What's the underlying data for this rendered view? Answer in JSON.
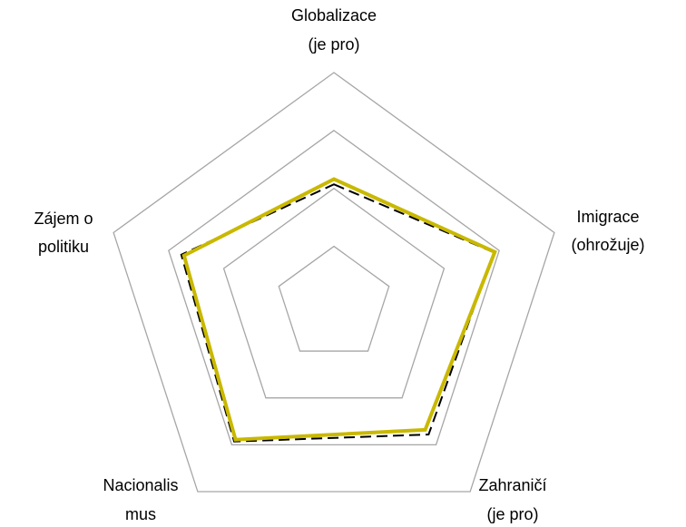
{
  "chart_data": {
    "type": "radar",
    "categories": [
      [
        "Globalizace",
        "(je pro)"
      ],
      [
        "Imigrace",
        "(ohrožuje)"
      ],
      [
        "Zahraničí",
        "(je pro)"
      ],
      [
        "Nacionalis",
        "mus"
      ],
      [
        "Zájem o",
        "politiku"
      ]
    ],
    "series": [
      {
        "color": "#000000",
        "dashed": true,
        "values": [
          2.07,
          2.9,
          2.78,
          2.93,
          2.77
        ]
      },
      {
        "color": "#c9b800",
        "dashed": false,
        "values": [
          2.16,
          2.92,
          2.68,
          2.89,
          2.72
        ]
      }
    ],
    "ylim": [
      0,
      4
    ],
    "yticks": [
      1,
      2,
      3,
      4
    ],
    "grid": true
  }
}
